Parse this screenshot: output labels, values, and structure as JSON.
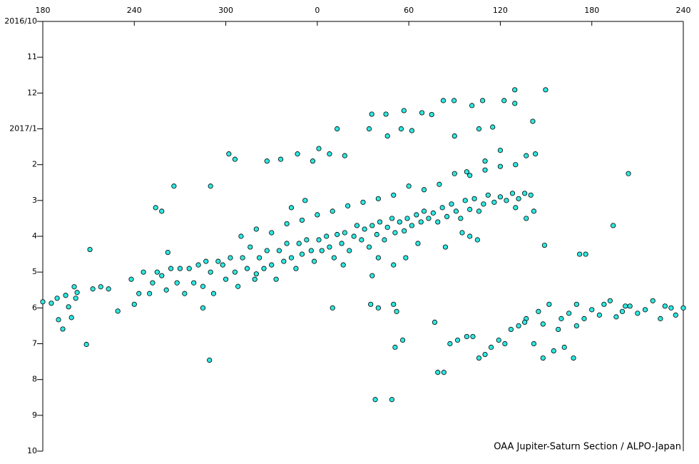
{
  "chart_data": {
    "type": "scatter",
    "annotation": "OAA Jupiter-Saturn Section / ALPO-Japan",
    "color": "#2ee8e0",
    "xlim": [
      180,
      600
    ],
    "xticks": [
      180,
      240,
      300,
      {
        "value": 360,
        "label": "0"
      },
      {
        "value": 420,
        "label": "60"
      },
      {
        "value": 480,
        "label": "120"
      },
      {
        "value": 540,
        "label": "180"
      },
      {
        "value": 600,
        "label": "240"
      }
    ],
    "ylim": [
      0,
      12
    ],
    "yticks": [
      {
        "value": 0,
        "label": "2016/10"
      },
      {
        "value": 1,
        "label": "11"
      },
      {
        "value": 2,
        "label": "12"
      },
      {
        "value": 3,
        "label": "2017/1"
      },
      {
        "value": 4,
        "label": "2"
      },
      {
        "value": 5,
        "label": "3"
      },
      {
        "value": 6,
        "label": "4"
      },
      {
        "value": 7,
        "label": "5"
      },
      {
        "value": 8,
        "label": "6"
      },
      {
        "value": 9,
        "label": "7"
      },
      {
        "value": 10,
        "label": "8"
      },
      {
        "value": 11,
        "label": "9"
      },
      {
        "value": 12,
        "label": "10"
      }
    ],
    "x": [
      180,
      185.6,
      189.4,
      190.3,
      193.1,
      195,
      196.9,
      198.8,
      200.6,
      202.5,
      201.6,
      208.6,
      210.9,
      212.8,
      218,
      223.1,
      229.2,
      238,
      240,
      243,
      246,
      250,
      252,
      255,
      258,
      261,
      262,
      264,
      268,
      270,
      273,
      276,
      279,
      282,
      285,
      287,
      290,
      292,
      295,
      298,
      300,
      303,
      306,
      308,
      311,
      314,
      316,
      319,
      322,
      325,
      327,
      330,
      333,
      335,
      338,
      340,
      343,
      346,
      348,
      350,
      353,
      356,
      358,
      361,
      363,
      366,
      368,
      371,
      373,
      376,
      378,
      381,
      384,
      386,
      389,
      391,
      394,
      396,
      399,
      401,
      404,
      406,
      409,
      411,
      414,
      417,
      419,
      422,
      425,
      428,
      430,
      433,
      436,
      439,
      442,
      445,
      448,
      451,
      454,
      457,
      460,
      463,
      466,
      469,
      472,
      476,
      480,
      484,
      488,
      492,
      496,
      500,
      310,
      320,
      330,
      340,
      350,
      360,
      370,
      380,
      390,
      400,
      410,
      420,
      430,
      440,
      450,
      460,
      470,
      480,
      490,
      497,
      503,
      497,
      505,
      508,
      512,
      520,
      525,
      530,
      535,
      540,
      545,
      552,
      556,
      560,
      565,
      570,
      575,
      580,
      585,
      588,
      592,
      595,
      600,
      562,
      548,
      518,
      530,
      439,
      443,
      447,
      452,
      458,
      462,
      466,
      470,
      474,
      479,
      483,
      487,
      492,
      496,
      502,
      508,
      515,
      522,
      528,
      395.7,
      405,
      416.8,
      428.6,
      442.6,
      449.7,
      461.4,
      468.4,
      482.5,
      489.5,
      509.7,
      501.3,
      489.5,
      435,
      450,
      466,
      475,
      458,
      480,
      470,
      302,
      306,
      327,
      336,
      347,
      357,
      361,
      368,
      373,
      378,
      394,
      406,
      415,
      422,
      266,
      290,
      258,
      254,
      400,
      410,
      418,
      426,
      437,
      444,
      396,
      400,
      410,
      412,
      395,
      411,
      416,
      370,
      289.3,
      398,
      408.9,
      343,
      352,
      377,
      564,
      532,
      536,
      554,
      320,
      285,
      509,
      502,
      490,
      497,
      455,
      460,
      465
    ],
    "values": [
      7.83,
      7.87,
      7.73,
      8.33,
      8.59,
      7.65,
      7.97,
      8.27,
      7.41,
      7.57,
      7.73,
      9.02,
      6.37,
      7.47,
      7.41,
      7.47,
      8.09,
      7.2,
      7.9,
      7.6,
      7.0,
      7.6,
      7.3,
      7.0,
      7.1,
      7.5,
      6.45,
      6.9,
      7.3,
      6.9,
      7.6,
      6.9,
      7.3,
      6.8,
      7.4,
      6.7,
      7.0,
      7.6,
      6.7,
      6.8,
      7.2,
      6.6,
      7.0,
      7.4,
      6.6,
      6.9,
      6.3,
      7.2,
      6.6,
      6.9,
      6.4,
      6.8,
      7.2,
      6.4,
      6.7,
      6.2,
      6.6,
      6.9,
      6.2,
      6.5,
      6.1,
      6.4,
      6.7,
      6.1,
      6.4,
      6.0,
      6.3,
      6.6,
      5.95,
      6.2,
      5.9,
      6.4,
      6.0,
      5.7,
      6.1,
      5.8,
      6.3,
      5.7,
      5.95,
      5.6,
      6.1,
      5.75,
      5.5,
      5.9,
      5.6,
      5.85,
      5.5,
      5.7,
      5.4,
      5.6,
      5.3,
      5.5,
      5.35,
      5.6,
      5.2,
      5.45,
      5.1,
      5.3,
      5.5,
      5.0,
      5.25,
      4.95,
      5.3,
      5.1,
      4.85,
      5.05,
      4.9,
      5.0,
      4.8,
      4.95,
      4.8,
      4.85,
      6.0,
      5.8,
      5.9,
      5.65,
      5.55,
      5.4,
      5.3,
      5.15,
      5.05,
      4.95,
      4.85,
      4.6,
      4.7,
      4.55,
      4.25,
      4.3,
      4.15,
      4.05,
      4.0,
      3.75,
      3.7,
      8.3,
      8.1,
      8.45,
      7.9,
      8.3,
      8.15,
      7.9,
      8.3,
      8.05,
      8.2,
      7.8,
      8.25,
      8.1,
      7.95,
      8.15,
      8.05,
      7.8,
      8.3,
      7.95,
      8.0,
      8.2,
      8.0,
      7.95,
      7.9,
      8.6,
      8.5,
      9.8,
      9.8,
      9.0,
      8.9,
      8.8,
      8.8,
      9.4,
      9.3,
      9.1,
      8.9,
      9.0,
      8.6,
      8.5,
      8.4,
      9.0,
      9.4,
      9.2,
      9.1,
      9.4,
      2.59,
      2.59,
      2.49,
      2.55,
      2.21,
      2.21,
      2.35,
      2.21,
      2.21,
      1.91,
      1.91,
      2.79,
      2.29,
      2.6,
      3.2,
      3.0,
      2.95,
      4.2,
      3.6,
      3.9,
      3.7,
      3.85,
      3.9,
      3.85,
      3.7,
      3.9,
      3.55,
      3.7,
      3.0,
      3.75,
      3.0,
      3.2,
      3.0,
      3.05,
      4.6,
      4.6,
      5.3,
      5.2,
      6.6,
      6.8,
      6.6,
      6.2,
      8.4,
      6.3,
      7.1,
      8.0,
      7.9,
      8.1,
      7.9,
      9.1,
      8.9,
      8.0,
      9.46,
      10.56,
      10.56,
      5.2,
      5.0,
      6.8,
      4.25,
      6.5,
      6.5,
      5.7,
      7.05,
      8.0,
      6.25,
      5.3,
      5.2,
      5.5,
      5.9,
      6.0,
      6.1
    ]
  }
}
